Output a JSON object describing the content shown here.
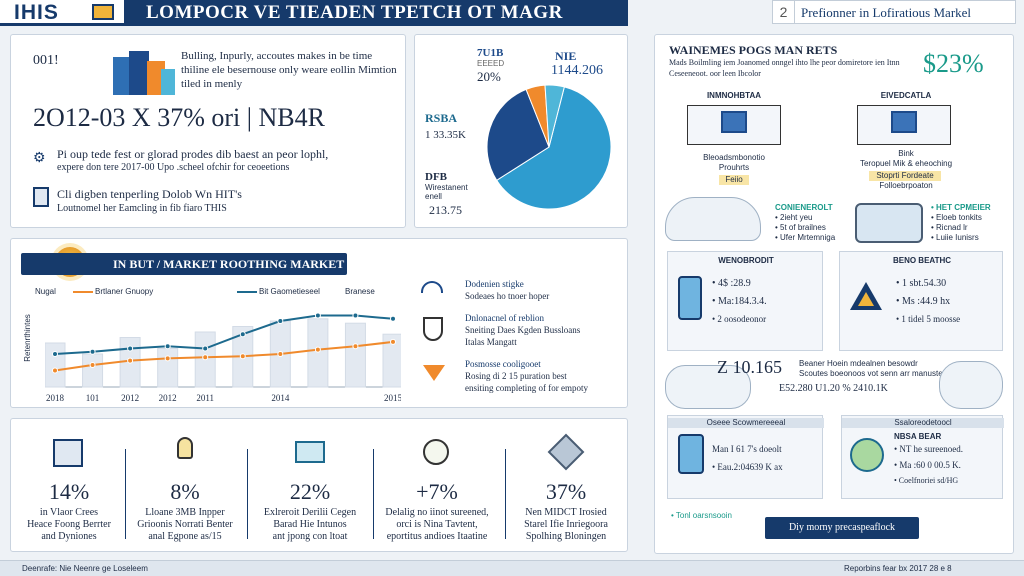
{
  "header": {
    "logo": "IHIS",
    "title": "LOMPOCR VE TIEADEN TPETCH OT MAGR",
    "page_number": "2",
    "subtitle": "Prefionner in Lofiratious Markel"
  },
  "top_left": {
    "tag": "001!",
    "intro_text": "Bulling, Inpurly, accoutes makes in be time thiline ele besernouse only weare eollin Mimtion tiled in menly",
    "big_stat": "2O12-03 X 37% ori | NB4R",
    "items": [
      {
        "line1": "Pi oup tede fest or glorad prodes dib baest an peor lophl,",
        "line2": "expere don tere 2017-00 Upo .scheel ofchir for ceoeetions"
      },
      {
        "line1": "Cli digben tenperling Dolob Wn HIT's",
        "line2": "Loutnomel her Eamcling in fib fiaro THIS"
      }
    ]
  },
  "pie": {
    "top_left_label": "7U1B",
    "top_left_sub": "EEEED",
    "top_left_pct": "20%",
    "top_right_label": "NIE",
    "top_right_value": "1144.206",
    "mid_label": "RSBA",
    "mid_value": "1 33.35K",
    "bottom_label": "DFB",
    "bottom_sub1": "Wirestanent",
    "bottom_sub2": "enell",
    "bottom_value": "213.75",
    "slices": [
      {
        "value": 62,
        "color": "#2e9ccf"
      },
      {
        "value": 28,
        "color": "#1d4a8a"
      },
      {
        "value": 5,
        "color": "#f08a2c"
      },
      {
        "value": 5,
        "color": "#4fb6d8"
      }
    ]
  },
  "market": {
    "banner": "IN BUT / MARKET ROOTHING MARKET",
    "legend_left": "Nugal",
    "legend_orange": "Brtlaner Gnuopy",
    "legend_blue": "Bit Gaometieseel",
    "legend_right": "Branese",
    "y_axis": "Retenrthintes",
    "chart_data": {
      "type": "line",
      "x": [
        "2018",
        "101",
        "2012",
        "2012",
        "2011",
        "",
        "2014",
        "",
        "",
        "2015"
      ],
      "series": [
        {
          "values": [
            30,
            32,
            35,
            37,
            35,
            48,
            60,
            65,
            65,
            62
          ],
          "color": "#1d6a8e"
        },
        {
          "values": [
            15,
            20,
            24,
            26,
            27,
            28,
            30,
            34,
            37,
            41
          ],
          "color": "#f08a2c"
        }
      ],
      "bars": [
        40,
        30,
        45,
        35,
        50,
        55,
        60,
        62,
        58,
        48
      ],
      "ylim": [
        0,
        80
      ]
    },
    "notes": [
      {
        "title": "Dodenien stigke",
        "text": "Sodeaes ho tnoer hoper"
      },
      {
        "title": "Dnlonacnel of reblion",
        "text": "Sneiting Daes Kgden Bussloans",
        "text2": "Italas Mangatt"
      },
      {
        "title": "Posmosse cooligooet",
        "text": "Rosing di 2 15 puration best",
        "text2": "ensiting completing of for empoty"
      }
    ]
  },
  "stats": [
    {
      "value": "14%",
      "lines": [
        "in Vlaor Crees",
        "Heace Foong Berrter",
        "and Dyniones"
      ]
    },
    {
      "value": "8%",
      "lines": [
        "Lloane 3MB Inpper",
        "Grioonis Norrati Benter",
        "anal Egpone as/15"
      ]
    },
    {
      "value": "22%",
      "lines": [
        "Exlreroit Derilii Cegen",
        "Barad Hie Intunos",
        "ant jpong con ltoat"
      ]
    },
    {
      "value": "+7%",
      "lines": [
        "Delalig no iinot sureened,",
        "orci is Nina Tavtent,",
        "eportitus andioes Itaatine"
      ]
    },
    {
      "value": "37%",
      "lines": [
        "Nen MIDCT Irosied",
        "Starel Ifie Inriegoora",
        "Spolhing Bloningen"
      ]
    }
  ],
  "right": {
    "title": "WAINEMES POGS MAN RETS",
    "text": "Mads Boilmling iem Joanomed onngel ihto lhe peor domiretore ien Itnn Ceseeneoot. oor leen Ibcolor",
    "percent": "$23%",
    "box1_title": "INMNOHBTAA",
    "box1_lines": [
      "Bleoadsmbonotio",
      "Prouhrts"
    ],
    "box1_tag": "Feiio",
    "box2_title": "EIVEDCATLA",
    "box2_lines": [
      "Bink",
      "Teropuel Mik & eheoching",
      "Folloebrpoaton"
    ],
    "box2_tag": "Stoprti Fordeate",
    "mid_left_title": "CONIENEROLT",
    "mid_left_lines": [
      "• 2ieht yeu",
      "• 5t of brailnes",
      "• Ufer Mrtemniga"
    ],
    "mid_right_title": "• HET CPMEIER",
    "mid_right_lines": [
      "• Eloeb tonkits",
      "• Ricnad lr",
      "• Luiie Iunisrs"
    ],
    "phone_title": "WENOBRODIT",
    "phone_lines": [
      "• 4$ :28.9",
      "• Ma:184.3.4.",
      "• 2 oosodeonor"
    ],
    "warn_title": "BENO BEATHC",
    "warn_lines": [
      "• 1 sbt.54.30",
      "• Ms :44.9 hx",
      "• 1 tidel 5 moosse"
    ],
    "big_value": "Z 10.165",
    "value_desc1": "Beaner Hoein mdealnen besowdr",
    "value_desc2": "Scoutes boeonoos vot senn arr manuste",
    "value_pair": "E52.280 U1.20 %     2410.1K",
    "bottom_box1_label": "Oseee Scowmereeeal",
    "bottom_box1_lines": [
      "Man I 61 7's doeolt",
      "• Eau.2:04639 K ax"
    ],
    "bottom_box2_label": "Ssaloreodetoocl",
    "bottom_box2_title": "NBSA BEAR",
    "bottom_box2_lines": [
      "• NT he sureenoed.",
      "• Ma :60 0 00.5 K.",
      "• Coelfnoriei sd/HG"
    ],
    "cta": "Diy morny precaspeaflock",
    "cta_note": "• Tonl oarsnsooin"
  },
  "footer": {
    "left": "Deenrafe: Nie Neenre ge Loseleem",
    "right": "Reporbins fear bx 2017 28 e 8"
  }
}
